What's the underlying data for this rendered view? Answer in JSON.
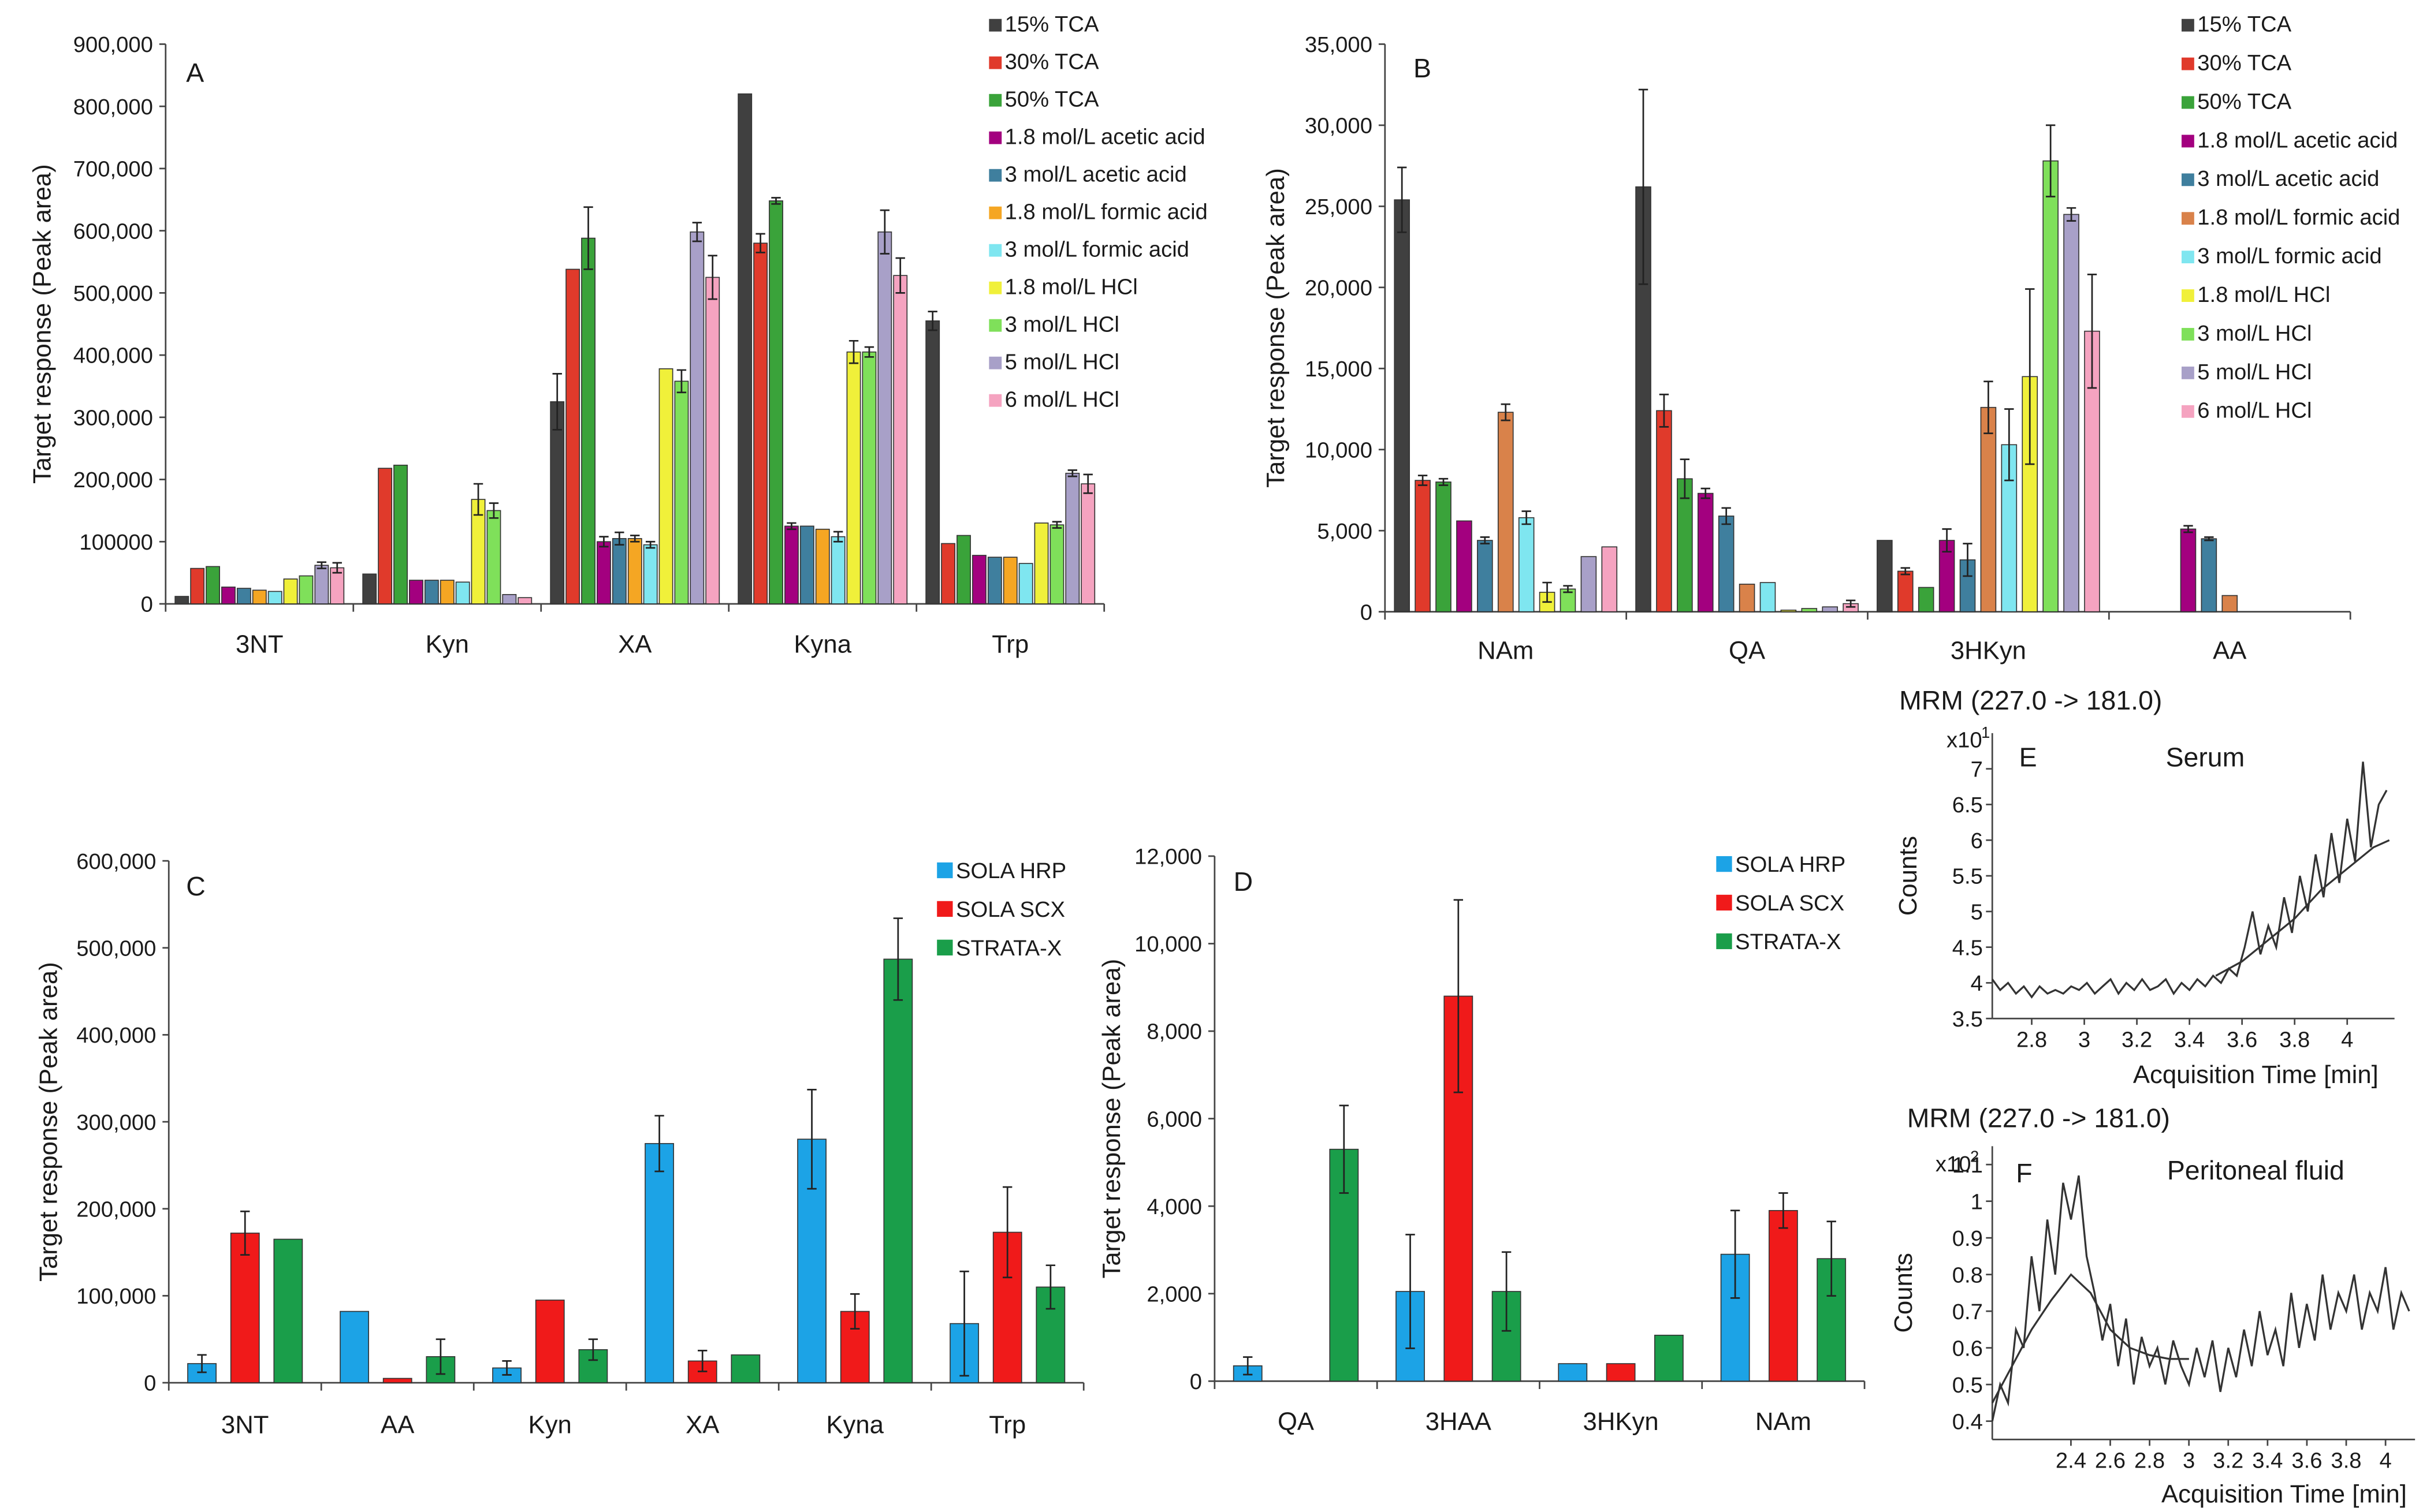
{
  "chart_data": [
    {
      "id": "A",
      "type": "bar",
      "letter": "A",
      "ylabel": "Target response (Peak area)",
      "ylim": [
        0,
        900000
      ],
      "yticks": [
        "0",
        "100000",
        "200,000",
        "300,000",
        "400,000",
        "500,000",
        "600,000",
        "700,000",
        "800,000",
        "900,000"
      ],
      "ytick_values": [
        0,
        100000,
        200000,
        300000,
        400000,
        500000,
        600000,
        700000,
        800000,
        900000
      ],
      "categories": [
        "3NT",
        "Kyn",
        "XA",
        "Kyna",
        "Trp"
      ],
      "legend_position": "top-right",
      "series": [
        {
          "name": "15% TCA",
          "color": "#404040",
          "values": [
            12000,
            48000,
            325000,
            820000,
            455000
          ],
          "errors": [
            0,
            0,
            45000,
            0,
            15000
          ]
        },
        {
          "name": "30% TCA",
          "color": "#e03a2b",
          "values": [
            57000,
            218000,
            538000,
            580000,
            97000
          ],
          "errors": [
            0,
            0,
            0,
            15000,
            0
          ]
        },
        {
          "name": "50% TCA",
          "color": "#3aa33a",
          "values": [
            60000,
            223000,
            588000,
            648000,
            110000
          ],
          "errors": [
            0,
            0,
            50000,
            5000,
            0
          ]
        },
        {
          "name": "1.8 mol/L acetic acid",
          "color": "#a3007f",
          "values": [
            27000,
            38000,
            100000,
            125000,
            78000
          ],
          "errors": [
            0,
            0,
            8000,
            5000,
            0
          ]
        },
        {
          "name": "3 mol/L acetic acid",
          "color": "#3f7f9e",
          "values": [
            25000,
            38000,
            105000,
            125000,
            75000
          ],
          "errors": [
            0,
            0,
            10000,
            0,
            0
          ]
        },
        {
          "name": "1.8 mol/L formic acid",
          "color": "#f5a623",
          "values": [
            22000,
            38000,
            105000,
            120000,
            75000
          ],
          "errors": [
            0,
            0,
            5000,
            0,
            0
          ]
        },
        {
          "name": "3 mol/L formic acid",
          "color": "#7fe6f0",
          "values": [
            20000,
            35000,
            95000,
            108000,
            65000
          ],
          "errors": [
            0,
            0,
            5000,
            8000,
            0
          ]
        },
        {
          "name": "1.8 mol/L HCl",
          "color": "#f0f03a",
          "values": [
            40000,
            168000,
            378000,
            405000,
            130000
          ],
          "errors": [
            0,
            25000,
            0,
            18000,
            0
          ]
        },
        {
          "name": "3 mol/L HCl",
          "color": "#7fe05a",
          "values": [
            45000,
            150000,
            358000,
            405000,
            127000
          ],
          "errors": [
            0,
            12000,
            18000,
            8000,
            5000
          ]
        },
        {
          "name": "5 mol/L HCl",
          "color": "#a8a0c8",
          "values": [
            62000,
            15000,
            598000,
            598000,
            210000
          ],
          "errors": [
            5000,
            0,
            15000,
            35000,
            5000
          ]
        },
        {
          "name": "6 mol/L HCl",
          "color": "#f5a3c0",
          "values": [
            58000,
            10000,
            525000,
            528000,
            193000
          ],
          "errors": [
            8000,
            0,
            35000,
            28000,
            15000
          ]
        }
      ]
    },
    {
      "id": "B",
      "type": "bar",
      "letter": "B",
      "ylabel": "Target response (Peak area)",
      "ylim": [
        0,
        35000
      ],
      "yticks": [
        "0",
        "5,000",
        "10,000",
        "15,000",
        "20,000",
        "25,000",
        "30,000",
        "35,000"
      ],
      "ytick_values": [
        0,
        5000,
        10000,
        15000,
        20000,
        25000,
        30000,
        35000
      ],
      "categories": [
        "NAm",
        "QA",
        "3HKyn",
        "AA"
      ],
      "legend_position": "top-right",
      "series": [
        {
          "name": "15% TCA",
          "color": "#404040",
          "values": [
            25400,
            26200,
            4400,
            0
          ],
          "errors": [
            2000,
            6000,
            0,
            0
          ]
        },
        {
          "name": "30% TCA",
          "color": "#e03a2b",
          "values": [
            8100,
            12400,
            2500,
            0
          ],
          "errors": [
            300,
            1000,
            200,
            0
          ]
        },
        {
          "name": "50% TCA",
          "color": "#3aa33a",
          "values": [
            8000,
            8200,
            1500,
            0
          ],
          "errors": [
            200,
            1200,
            0,
            0
          ]
        },
        {
          "name": "1.8 mol/L acetic acid",
          "color": "#a3007f",
          "values": [
            5600,
            7300,
            4400,
            5100
          ],
          "errors": [
            0,
            300,
            700,
            200
          ]
        },
        {
          "name": "3 mol/L acetic acid",
          "color": "#3f7f9e",
          "values": [
            4400,
            5900,
            3200,
            4500
          ],
          "errors": [
            200,
            500,
            1000,
            100
          ]
        },
        {
          "name": "1.8 mol/L formic acid",
          "color": "#d9824a",
          "values": [
            12300,
            1700,
            12600,
            1000
          ],
          "errors": [
            500,
            0,
            1600,
            0
          ]
        },
        {
          "name": "3 mol/L formic acid",
          "color": "#7fe6f0",
          "values": [
            5800,
            1800,
            10300,
            0
          ],
          "errors": [
            400,
            0,
            2200,
            0
          ]
        },
        {
          "name": "1.8 mol/L HCl",
          "color": "#f0f03a",
          "values": [
            1200,
            100,
            14500,
            0
          ],
          "errors": [
            600,
            0,
            5400,
            0
          ]
        },
        {
          "name": "3 mol/L HCl",
          "color": "#7fe05a",
          "values": [
            1400,
            200,
            27800,
            0
          ],
          "errors": [
            200,
            0,
            2200,
            0
          ]
        },
        {
          "name": "5 mol/L HCl",
          "color": "#a8a0c8",
          "values": [
            3400,
            300,
            24500,
            0
          ],
          "errors": [
            0,
            0,
            400,
            0
          ]
        },
        {
          "name": "6 mol/L HCl",
          "color": "#f5a3c0",
          "values": [
            4000,
            500,
            17300,
            0
          ],
          "errors": [
            0,
            200,
            3500,
            0
          ]
        }
      ]
    },
    {
      "id": "C",
      "type": "bar",
      "letter": "C",
      "ylabel": "Target response (Peak area)",
      "ylim": [
        0,
        600000
      ],
      "yticks": [
        "0",
        "100,000",
        "200,000",
        "300,000",
        "400,000",
        "500,000",
        "600,000"
      ],
      "ytick_values": [
        0,
        100000,
        200000,
        300000,
        400000,
        500000,
        600000
      ],
      "categories": [
        "3NT",
        "AA",
        "Kyn",
        "XA",
        "Kyna",
        "Trp"
      ],
      "legend_position": "top-right",
      "series": [
        {
          "name": "SOLA HRP",
          "color": "#1ca3e6",
          "values": [
            22000,
            82000,
            17000,
            275000,
            280000,
            68000
          ],
          "errors": [
            10000,
            0,
            8000,
            32000,
            57000,
            60000
          ]
        },
        {
          "name": "SOLA SCX",
          "color": "#f01a1a",
          "values": [
            172000,
            5000,
            95000,
            25000,
            82000,
            173000
          ],
          "errors": [
            25000,
            0,
            0,
            12000,
            20000,
            52000
          ]
        },
        {
          "name": "STRATA-X",
          "color": "#1a9e4a",
          "values": [
            165000,
            30000,
            38000,
            32000,
            487000,
            110000
          ],
          "errors": [
            0,
            20000,
            12000,
            0,
            47000,
            25000
          ]
        }
      ]
    },
    {
      "id": "D",
      "type": "bar",
      "letter": "D",
      "ylabel": "Target response (Peak area)",
      "ylim": [
        0,
        12000
      ],
      "yticks": [
        "0",
        "2,000",
        "4,000",
        "6,000",
        "8,000",
        "10,000",
        "12,000"
      ],
      "ytick_values": [
        0,
        2000,
        4000,
        6000,
        8000,
        10000,
        12000
      ],
      "categories": [
        "QA",
        "3HAA",
        "3HKyn",
        "NAm"
      ],
      "legend_position": "top-right",
      "series": [
        {
          "name": "SOLA HRP",
          "color": "#1ca3e6",
          "values": [
            350,
            2050,
            400,
            2900
          ],
          "errors": [
            200,
            1300,
            0,
            1000
          ]
        },
        {
          "name": "SOLA SCX",
          "color": "#f01a1a",
          "values": [
            0,
            8800,
            400,
            3900
          ],
          "errors": [
            0,
            2200,
            0,
            400
          ]
        },
        {
          "name": "STRATA-X",
          "color": "#1a9e4a",
          "values": [
            5300,
            2050,
            1050,
            2800
          ],
          "errors": [
            1000,
            900,
            0,
            850
          ]
        }
      ]
    },
    {
      "id": "E",
      "type": "line",
      "mrm": "MRM (227.0 -> 181.0)",
      "letter": "E",
      "title": "Serum",
      "ylabel": "Counts",
      "yscale_label": "x10",
      "yscale_exp": "1",
      "xlabel": "Acquisition Time [min]",
      "xlim": [
        2.65,
        4.18
      ],
      "ylim": [
        3.5,
        7.5
      ],
      "xticks": [
        "2.8",
        "3",
        "3.2",
        "3.4",
        "3.6",
        "3.8",
        "4"
      ],
      "xtick_values": [
        2.8,
        3.0,
        3.2,
        3.4,
        3.6,
        3.8,
        4.0
      ],
      "yticks": [
        "3.5",
        "4",
        "4.5",
        "5",
        "5.5",
        "6",
        "6.5",
        "7"
      ],
      "ytick_values": [
        3.5,
        4,
        4.5,
        5,
        5.5,
        6,
        6.5,
        7
      ],
      "x": [
        2.65,
        2.68,
        2.71,
        2.74,
        2.77,
        2.8,
        2.83,
        2.86,
        2.89,
        2.92,
        2.95,
        2.98,
        3.01,
        3.04,
        3.07,
        3.1,
        3.13,
        3.16,
        3.19,
        3.22,
        3.25,
        3.28,
        3.31,
        3.34,
        3.37,
        3.4,
        3.43,
        3.46,
        3.49,
        3.52,
        3.55,
        3.58,
        3.61,
        3.64,
        3.67,
        3.7,
        3.73,
        3.76,
        3.79,
        3.82,
        3.85,
        3.88,
        3.91,
        3.94,
        3.97,
        4.0,
        4.03,
        4.06,
        4.09,
        4.12,
        4.15
      ],
      "y": [
        4.05,
        3.9,
        4.0,
        3.85,
        3.95,
        3.8,
        3.95,
        3.85,
        3.9,
        3.85,
        3.95,
        3.9,
        4.0,
        3.85,
        3.95,
        4.05,
        3.85,
        4.0,
        3.9,
        4.05,
        3.9,
        3.95,
        4.05,
        3.85,
        4.0,
        3.9,
        4.05,
        3.95,
        4.1,
        4.0,
        4.2,
        4.1,
        4.5,
        5.0,
        4.4,
        4.8,
        4.5,
        5.2,
        4.7,
        5.5,
        5.0,
        5.8,
        5.2,
        6.1,
        5.4,
        6.3,
        5.7,
        7.1,
        5.9,
        6.5,
        6.7
      ],
      "x_smooth": [
        3.5,
        3.6,
        3.7,
        3.8,
        3.9,
        4.0,
        4.1,
        4.16
      ],
      "y_smooth": [
        4.1,
        4.3,
        4.6,
        4.9,
        5.3,
        5.6,
        5.9,
        6.0
      ]
    },
    {
      "id": "F",
      "type": "line",
      "mrm": "MRM (227.0 -> 181.0)",
      "letter": "F",
      "title": "Peritoneal fluid",
      "ylabel": "Counts",
      "yscale_label": "x10",
      "yscale_exp": "2",
      "xlabel": "Acquisition Time [min]",
      "xlim": [
        2.0,
        4.15
      ],
      "ylim": [
        0.35,
        1.15
      ],
      "xticks": [
        "2.4",
        "2.6",
        "2.8",
        "3",
        "3.2",
        "3.4",
        "3.6",
        "3.8",
        "4"
      ],
      "xtick_values": [
        2.4,
        2.6,
        2.8,
        3.0,
        3.2,
        3.4,
        3.6,
        3.8,
        4.0
      ],
      "yticks": [
        "0.4",
        "0.5",
        "0.6",
        "0.7",
        "0.8",
        "0.9",
        "1",
        "1.1"
      ],
      "ytick_values": [
        0.4,
        0.5,
        0.6,
        0.7,
        0.8,
        0.9,
        1.0,
        1.1
      ],
      "x": [
        2.0,
        2.04,
        2.08,
        2.12,
        2.16,
        2.2,
        2.24,
        2.28,
        2.32,
        2.36,
        2.4,
        2.44,
        2.48,
        2.52,
        2.56,
        2.6,
        2.64,
        2.68,
        2.72,
        2.76,
        2.8,
        2.84,
        2.88,
        2.92,
        2.96,
        3.0,
        3.04,
        3.08,
        3.12,
        3.16,
        3.2,
        3.24,
        3.28,
        3.32,
        3.36,
        3.4,
        3.44,
        3.48,
        3.52,
        3.56,
        3.6,
        3.64,
        3.68,
        3.72,
        3.76,
        3.8,
        3.84,
        3.88,
        3.92,
        3.96,
        4.0,
        4.04,
        4.08,
        4.12
      ],
      "y": [
        0.4,
        0.5,
        0.45,
        0.65,
        0.6,
        0.85,
        0.7,
        0.95,
        0.8,
        1.05,
        0.95,
        1.07,
        0.85,
        0.75,
        0.62,
        0.72,
        0.55,
        0.68,
        0.5,
        0.63,
        0.55,
        0.6,
        0.5,
        0.62,
        0.55,
        0.5,
        0.6,
        0.52,
        0.62,
        0.48,
        0.6,
        0.52,
        0.65,
        0.55,
        0.7,
        0.58,
        0.65,
        0.55,
        0.75,
        0.6,
        0.72,
        0.62,
        0.8,
        0.65,
        0.75,
        0.7,
        0.8,
        0.65,
        0.75,
        0.7,
        0.82,
        0.65,
        0.75,
        0.7
      ],
      "x_smooth": [
        2.0,
        2.1,
        2.2,
        2.3,
        2.4,
        2.5,
        2.6,
        2.7,
        2.8,
        2.9,
        3.0
      ],
      "y_smooth": [
        0.45,
        0.55,
        0.65,
        0.73,
        0.8,
        0.75,
        0.65,
        0.6,
        0.58,
        0.57,
        0.57
      ]
    }
  ]
}
